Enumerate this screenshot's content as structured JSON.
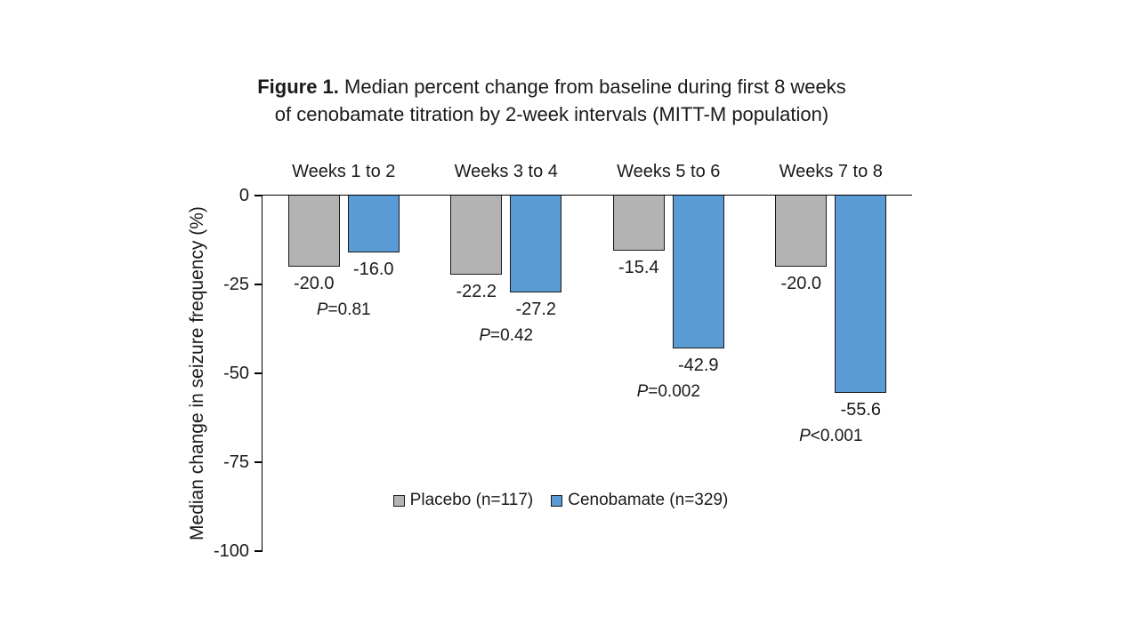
{
  "title": {
    "prefix": "Figure 1.",
    "line1": " Median percent change from baseline during first 8 weeks",
    "line2": "of cenobamate titration by 2-week intervals (MITT-M population)"
  },
  "chart_data": {
    "type": "bar",
    "orientation": "vertical",
    "categories": [
      "Weeks 1 to 2",
      "Weeks 3 to 4",
      "Weeks 5 to 6",
      "Weeks 7 to 8"
    ],
    "series": [
      {
        "name": "Placebo (n=117)",
        "color": "#b3b3b3",
        "values": [
          -20.0,
          -22.2,
          -15.4,
          -20.0
        ],
        "value_labels": [
          "-20.0",
          "-22.2",
          "-15.4",
          "-20.0"
        ]
      },
      {
        "name": "Cenobamate (n=329)",
        "color": "#5b9bd5",
        "values": [
          -16.0,
          -27.2,
          -42.9,
          -55.6
        ],
        "value_labels": [
          "-16.0",
          "-27.2",
          "-42.9",
          "-55.6"
        ]
      }
    ],
    "p_values": [
      "P=0.81",
      "P=0.42",
      "P=0.002",
      "P<0.001"
    ],
    "ylabel": "Median change in seizure frequency (%)",
    "yticks": [
      0,
      -25,
      -50,
      -75,
      -100
    ],
    "ytick_labels": [
      "0",
      "-25",
      "-50",
      "-75",
      "-100"
    ],
    "ylim": [
      0,
      -100
    ],
    "grid": false,
    "legend_position": "bottom-center-inside",
    "bar_border_color": "#1a1a1a",
    "axis_color": "#000000",
    "text_color": "#1a1a1a",
    "background_color": "#ffffff"
  }
}
